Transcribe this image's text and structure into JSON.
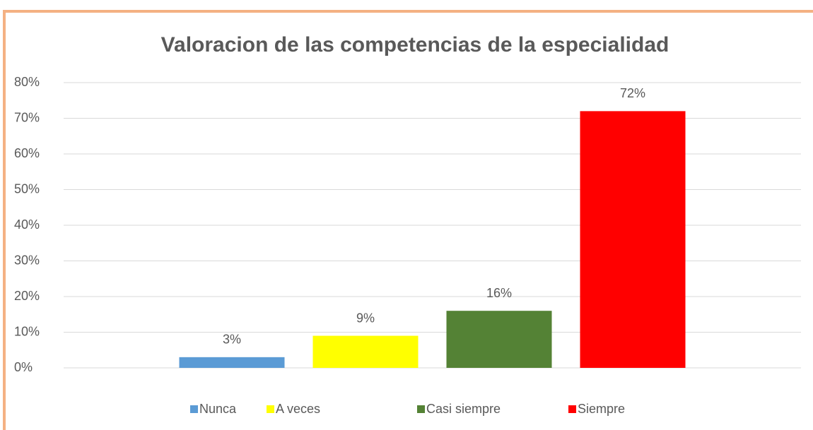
{
  "chart_data": {
    "type": "bar",
    "title": "Valoracion de las competencias de la especialidad",
    "series": [
      {
        "name": "Nunca",
        "color": "#5b9bd5",
        "values": [
          3
        ],
        "value_labels": [
          "3%"
        ]
      },
      {
        "name": "A veces",
        "color": "#ffff00",
        "values": [
          9
        ],
        "value_labels": [
          "9%"
        ]
      },
      {
        "name": "Casi siempre",
        "color": "#548235",
        "values": [
          16
        ],
        "value_labels": [
          "16%"
        ]
      },
      {
        "name": "Siempre",
        "color": "#ff0000",
        "values": [
          72
        ],
        "value_labels": [
          "72%"
        ]
      }
    ],
    "ylim": [
      0,
      80
    ],
    "yticks": [
      {
        "value": 0,
        "label": "0%"
      },
      {
        "value": 10,
        "label": "10%"
      },
      {
        "value": 20,
        "label": "20%"
      },
      {
        "value": 30,
        "label": "30%"
      },
      {
        "value": 40,
        "label": "40%"
      },
      {
        "value": 50,
        "label": "50%"
      },
      {
        "value": 60,
        "label": "60%"
      },
      {
        "value": 70,
        "label": "70%"
      },
      {
        "value": 80,
        "label": "80%"
      }
    ],
    "grid": true,
    "legend": "bottom"
  }
}
